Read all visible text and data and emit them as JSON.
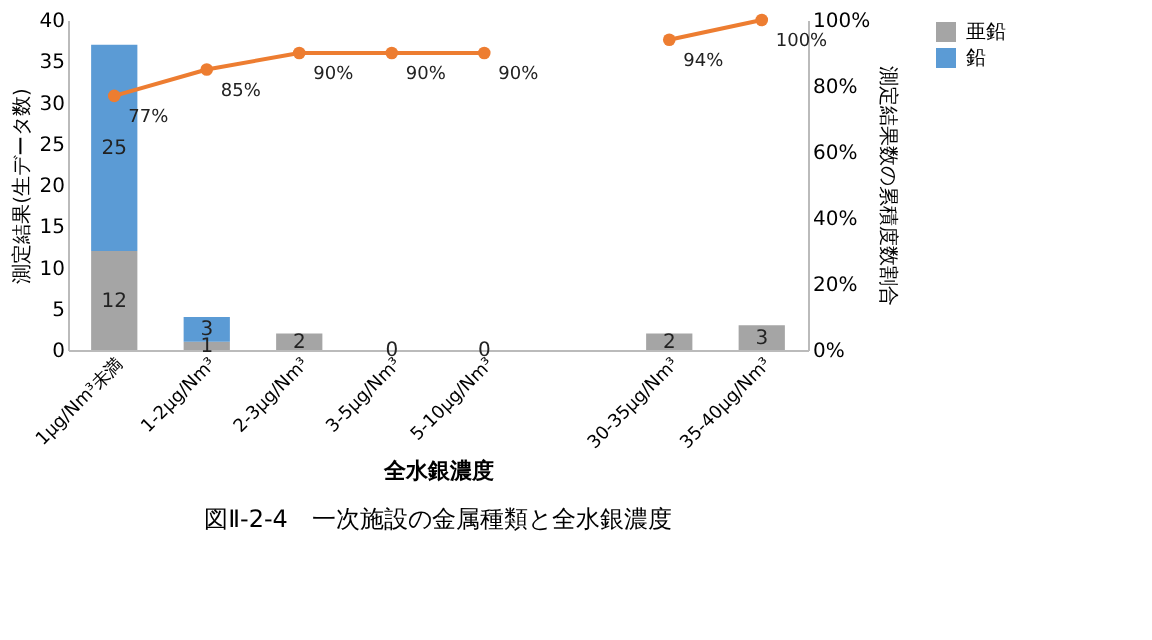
{
  "chart_data": {
    "type": "bar",
    "stacked": true,
    "categories": [
      "1μg/Nm³未満",
      "1-2μg/Nm³",
      "2-3μg/Nm³",
      "3-5μg/Nm³",
      "5-10μg/Nm³",
      null,
      "30-35μg/Nm³",
      "35-40μg/Nm³"
    ],
    "series": [
      {
        "name": "亜鉛",
        "color": "#a5a5a5",
        "values": [
          12,
          1,
          2,
          0,
          0,
          null,
          2,
          3
        ],
        "value_labels": [
          "12",
          "1",
          "2",
          "0",
          "0",
          null,
          "2",
          "3"
        ]
      },
      {
        "name": "鉛",
        "color": "#5b9bd5",
        "values": [
          25,
          3,
          0,
          0,
          0,
          null,
          0,
          0
        ],
        "value_labels": [
          "25",
          "3",
          null,
          null,
          null,
          null,
          null,
          null
        ]
      },
      {
        "type": "line",
        "axis": "y2",
        "color": "#ed7d31",
        "marker": "circle",
        "values": [
          77,
          85,
          90,
          90,
          90,
          null,
          94,
          100
        ],
        "value_labels": [
          "77%",
          "85%",
          "90%",
          "90%",
          "90%",
          null,
          "94%",
          "100%"
        ]
      }
    ],
    "xlabel": "全水銀濃度",
    "ylabel": "測定結果(生データ数)",
    "y2label": "測定結果数の累積度数割合",
    "ylim": [
      0,
      40
    ],
    "yticks": [
      0,
      5,
      10,
      15,
      20,
      25,
      30,
      35,
      40
    ],
    "y2lim": [
      0,
      100
    ],
    "y2ticks": [
      {
        "value": 0,
        "label": "0%"
      },
      {
        "value": 20,
        "label": "20%"
      },
      {
        "value": 40,
        "label": "40%"
      },
      {
        "value": 60,
        "label": "60%"
      },
      {
        "value": 80,
        "label": "80%"
      },
      {
        "value": 100,
        "label": "100%"
      }
    ],
    "legend": "right",
    "grid": false,
    "annotations": [
      "図Ⅱ-2-4　一次施設の金属種類と全水銀濃度"
    ]
  }
}
